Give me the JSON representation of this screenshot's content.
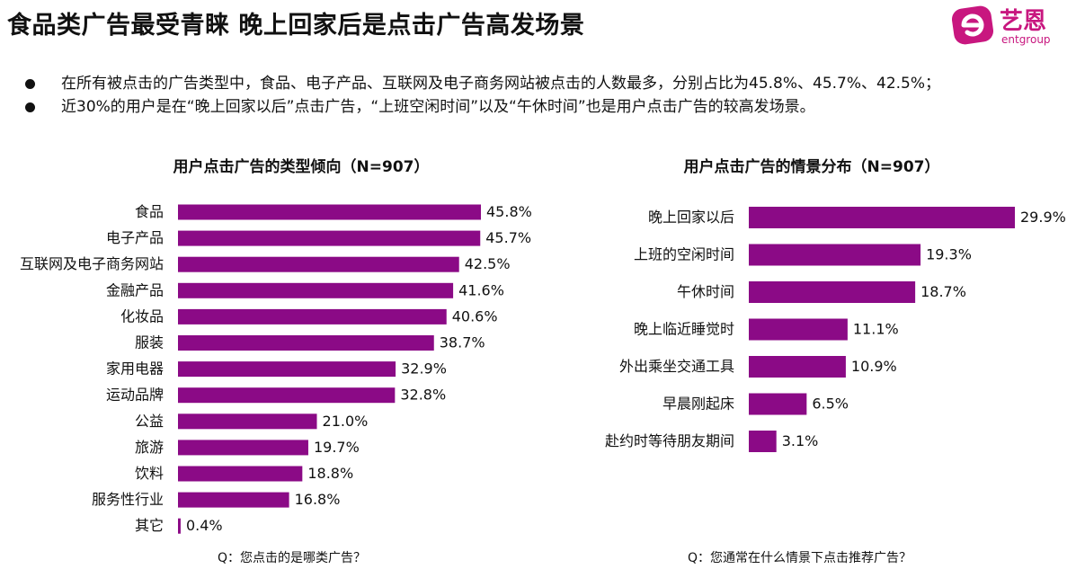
{
  "header": {
    "title": "食品类广告最受青睐  晚上回家后是点击广告高发场景",
    "logo_text": "艺恩",
    "logo_subtext": "entgroup"
  },
  "bullets": [
    "在所有被点击的广告类型中，食品、电子产品、互联网及电子商务网站被点击的人数最多，分别占比为45.8%、45.7%、42.5%；",
    "近30%的用户是在“晚上回家以后”点击广告，“上班空闲时间”以及“午休时间”也是用户点击广告的较高发场景。"
  ],
  "colors": {
    "bar": "#8b0a86",
    "logo": "#c8177f"
  },
  "chart_data": [
    {
      "type": "bar",
      "orientation": "horizontal",
      "title": "用户点击广告的类型倾向（N=907）",
      "footnote": "Q：您点击的是哪类广告？",
      "categories": [
        "食品",
        "电子产品",
        "互联网及电子商务网站",
        "金融产品",
        "化妆品",
        "服装",
        "家用电器",
        "运动品牌",
        "公益",
        "旅游",
        "饮料",
        "服务性行业",
        "其它"
      ],
      "values": [
        45.8,
        45.7,
        42.5,
        41.6,
        40.6,
        38.7,
        32.9,
        32.8,
        21.0,
        19.7,
        18.8,
        16.8,
        0.4
      ],
      "value_labels": [
        "45.8%",
        "45.7%",
        "42.5%",
        "41.6%",
        "40.6%",
        "38.7%",
        "32.9%",
        "32.8%",
        "21.0%",
        "19.7%",
        "18.8%",
        "16.8%",
        "0.4%"
      ],
      "unit": "%",
      "grid": false,
      "legend": "none"
    },
    {
      "type": "bar",
      "orientation": "horizontal",
      "title": "用户点击广告的情景分布（N=907）",
      "footnote": "Q：您通常在什么情景下点击推荐广告？",
      "categories": [
        "晚上回家以后",
        "上班的空闲时间",
        "午休时间",
        "晚上临近睡觉时",
        "外出乘坐交通工具",
        "早晨刚起床",
        "赴约时等待朋友期间"
      ],
      "values": [
        29.9,
        19.3,
        18.7,
        11.1,
        10.9,
        6.5,
        3.1
      ],
      "value_labels": [
        "29.9%",
        "19.3%",
        "18.7%",
        "11.1%",
        "10.9%",
        "6.5%",
        "3.1%"
      ],
      "unit": "%",
      "grid": false,
      "legend": "none"
    }
  ]
}
